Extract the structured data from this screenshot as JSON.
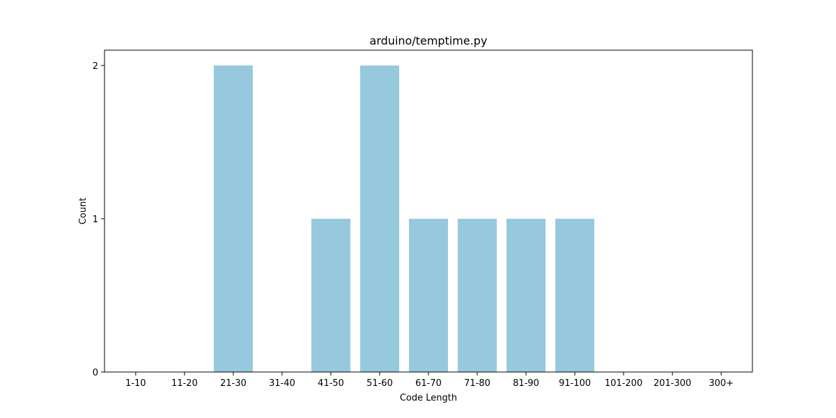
{
  "chart_data": {
    "type": "bar",
    "title": "arduino/temptime.py",
    "xlabel": "Code Length",
    "ylabel": "Count",
    "categories": [
      "1-10",
      "11-20",
      "21-30",
      "31-40",
      "41-50",
      "51-60",
      "61-70",
      "71-80",
      "81-90",
      "91-100",
      "101-200",
      "201-300",
      "300+"
    ],
    "values": [
      0,
      0,
      2,
      0,
      1,
      2,
      1,
      1,
      1,
      1,
      0,
      0,
      0
    ],
    "yticks": [
      "0",
      "1",
      "2"
    ],
    "ylim": [
      0,
      2.1
    ],
    "grid": false,
    "bar_color": "#96c9de"
  }
}
